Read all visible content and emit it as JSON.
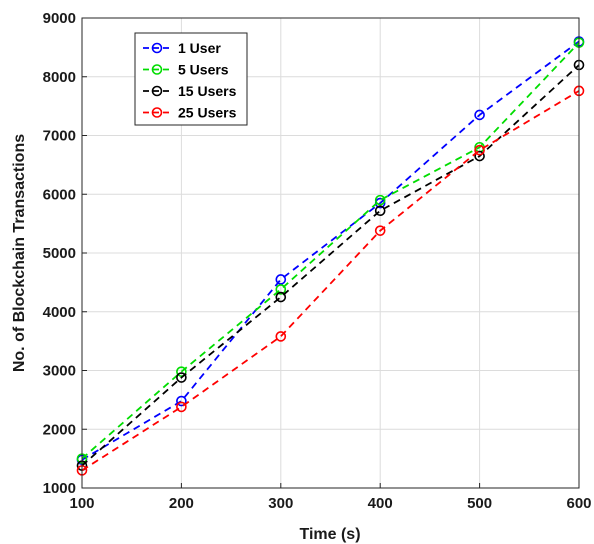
{
  "chart_data": {
    "type": "line",
    "title": "",
    "xlabel": "Time (s)",
    "ylabel": "No. of Blockchain Transactions",
    "x": [
      100,
      200,
      300,
      400,
      500,
      600
    ],
    "xlim": [
      100,
      600
    ],
    "ylim": [
      1000,
      9000
    ],
    "xticks": [
      "100",
      "200",
      "300",
      "400",
      "500",
      "600"
    ],
    "yticks": [
      "1000",
      "2000",
      "3000",
      "4000",
      "5000",
      "6000",
      "7000",
      "8000",
      "9000"
    ],
    "grid": true,
    "legend_position": "top-left",
    "line_style": "dashed",
    "marker": "circle",
    "series": [
      {
        "name": "1 User",
        "color": "#0000ff",
        "values": [
          1480,
          2480,
          4550,
          5850,
          7350,
          8600
        ]
      },
      {
        "name": "5 Users",
        "color": "#00dd00",
        "values": [
          1500,
          2980,
          4380,
          5900,
          6800,
          8580
        ]
      },
      {
        "name": "15 Users",
        "color": "#000000",
        "values": [
          1380,
          2880,
          4250,
          5720,
          6650,
          8200
        ]
      },
      {
        "name": "25 Users",
        "color": "#ff0000",
        "values": [
          1300,
          2380,
          3580,
          5380,
          6750,
          7760
        ]
      }
    ]
  }
}
